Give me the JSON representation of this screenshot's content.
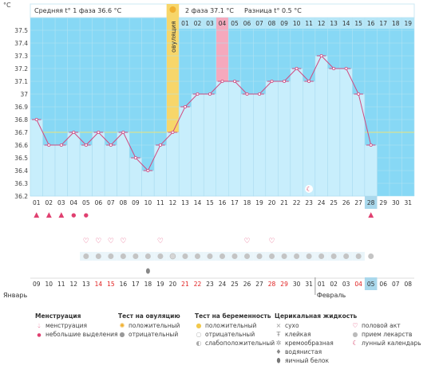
{
  "summary": {
    "unit": "°C",
    "phase1_label": "Средняя t° 1 фаза 36.6 °C",
    "phase2_label": "2 фаза 37.1 °C",
    "diff_label": "Разница t° 0.5 °C",
    "ovulation_label": "овуляция"
  },
  "chart_data": {
    "type": "line",
    "title": "",
    "ylim": [
      36.2,
      37.6
    ],
    "y_ticks": [
      "36.2",
      "36.3",
      "36.4",
      "36.5",
      "36.6",
      "36.7",
      "36.8",
      "36.9",
      "37",
      "37.1",
      "37.2",
      "37.3",
      "37.4",
      "37.5"
    ],
    "grid": true,
    "coverline": 36.7,
    "ovulation_day": 12,
    "highlight_day": 16,
    "cycle_day_labels": [
      "01",
      "02",
      "03",
      "04",
      "05",
      "06",
      "07",
      "08",
      "09",
      "10",
      "11",
      "12",
      "13",
      "14",
      "15",
      "16",
      "17",
      "18",
      "19",
      "20",
      "21",
      "22",
      "23",
      "24",
      "25",
      "26",
      "27",
      "28",
      "29",
      "30",
      "31"
    ],
    "phase2_day_labels": [
      "01",
      "02",
      "03",
      "04",
      "05",
      "06",
      "07",
      "08",
      "09",
      "10",
      "11",
      "12",
      "13",
      "14",
      "15",
      "16",
      "17",
      "18",
      "19"
    ],
    "series": [
      {
        "values": [
          36.8,
          36.6,
          36.6,
          36.7,
          36.6,
          36.7,
          36.6,
          36.7,
          36.5,
          36.4,
          36.6,
          36.7,
          36.9,
          37.0,
          37.0,
          37.1,
          37.1,
          37.0,
          37.0,
          37.1,
          37.1,
          37.2,
          37.1,
          37.3,
          37.2,
          37.2,
          37.0,
          36.6
        ]
      }
    ],
    "moon_day": 23,
    "today_day": 28
  },
  "marks": {
    "menstruation_days": [
      1,
      2,
      3,
      4,
      5,
      28
    ],
    "menstruation_sizes": [
      "l",
      "l",
      "l",
      "s",
      "s",
      "l"
    ],
    "intercourse_days": [
      5,
      6,
      7,
      8,
      11,
      18,
      20
    ],
    "test_days": [
      5,
      6,
      7,
      8,
      9,
      10,
      11,
      12,
      13,
      14,
      15,
      16,
      17,
      18,
      19,
      20,
      21,
      22,
      23,
      24,
      25,
      26,
      27
    ],
    "test_neg_days": [
      5,
      6,
      7,
      8,
      9,
      10,
      11,
      13,
      14,
      15,
      16,
      17,
      18,
      19,
      20,
      21,
      22,
      23,
      24,
      25,
      26,
      27
    ],
    "test_other_days": [
      12
    ],
    "cervical_days": [
      10
    ]
  },
  "calendar": {
    "dates": [
      "09",
      "10",
      "11",
      "12",
      "13",
      "14",
      "15",
      "16",
      "17",
      "18",
      "19",
      "20",
      "21",
      "22",
      "23",
      "24",
      "25",
      "26",
      "27",
      "28",
      "29",
      "30",
      "31",
      "01",
      "02",
      "03",
      "04",
      "05",
      "06",
      "07",
      "08"
    ],
    "red_dates": [
      6,
      7,
      13,
      14,
      20,
      21,
      27
    ],
    "today_index": 28,
    "month1": "Январь",
    "month2": "Февраль",
    "month2_start_index": 24
  },
  "legend": {
    "menstruation": {
      "title": "Менструация",
      "items": [
        "менструация",
        "небольшие выделения"
      ]
    },
    "ovulation_test": {
      "title": "Тест на овуляцию",
      "items": [
        "положительный",
        "отрицательный"
      ]
    },
    "pregnancy_test": {
      "title": "Тест на беременность",
      "items": [
        "положительный",
        "отрицательный",
        "слабоположительный"
      ]
    },
    "cervical": {
      "title": "Церикальная жидкость",
      "items": [
        "сухо",
        "клейкая",
        "кремообразная",
        "водянистая",
        "яичный белок"
      ]
    },
    "other": {
      "items": [
        "половой акт",
        "прием лекарств",
        "лунный календарь"
      ]
    },
    "colors": {
      "plot_bg": "#87d8f5",
      "fill": "#c8eefc",
      "line": "#d04a80",
      "ovulation": "#f7d66a",
      "highlight": "#f5a9bd",
      "today": "#a9d8ec",
      "coverline": "#e8e37a"
    }
  }
}
